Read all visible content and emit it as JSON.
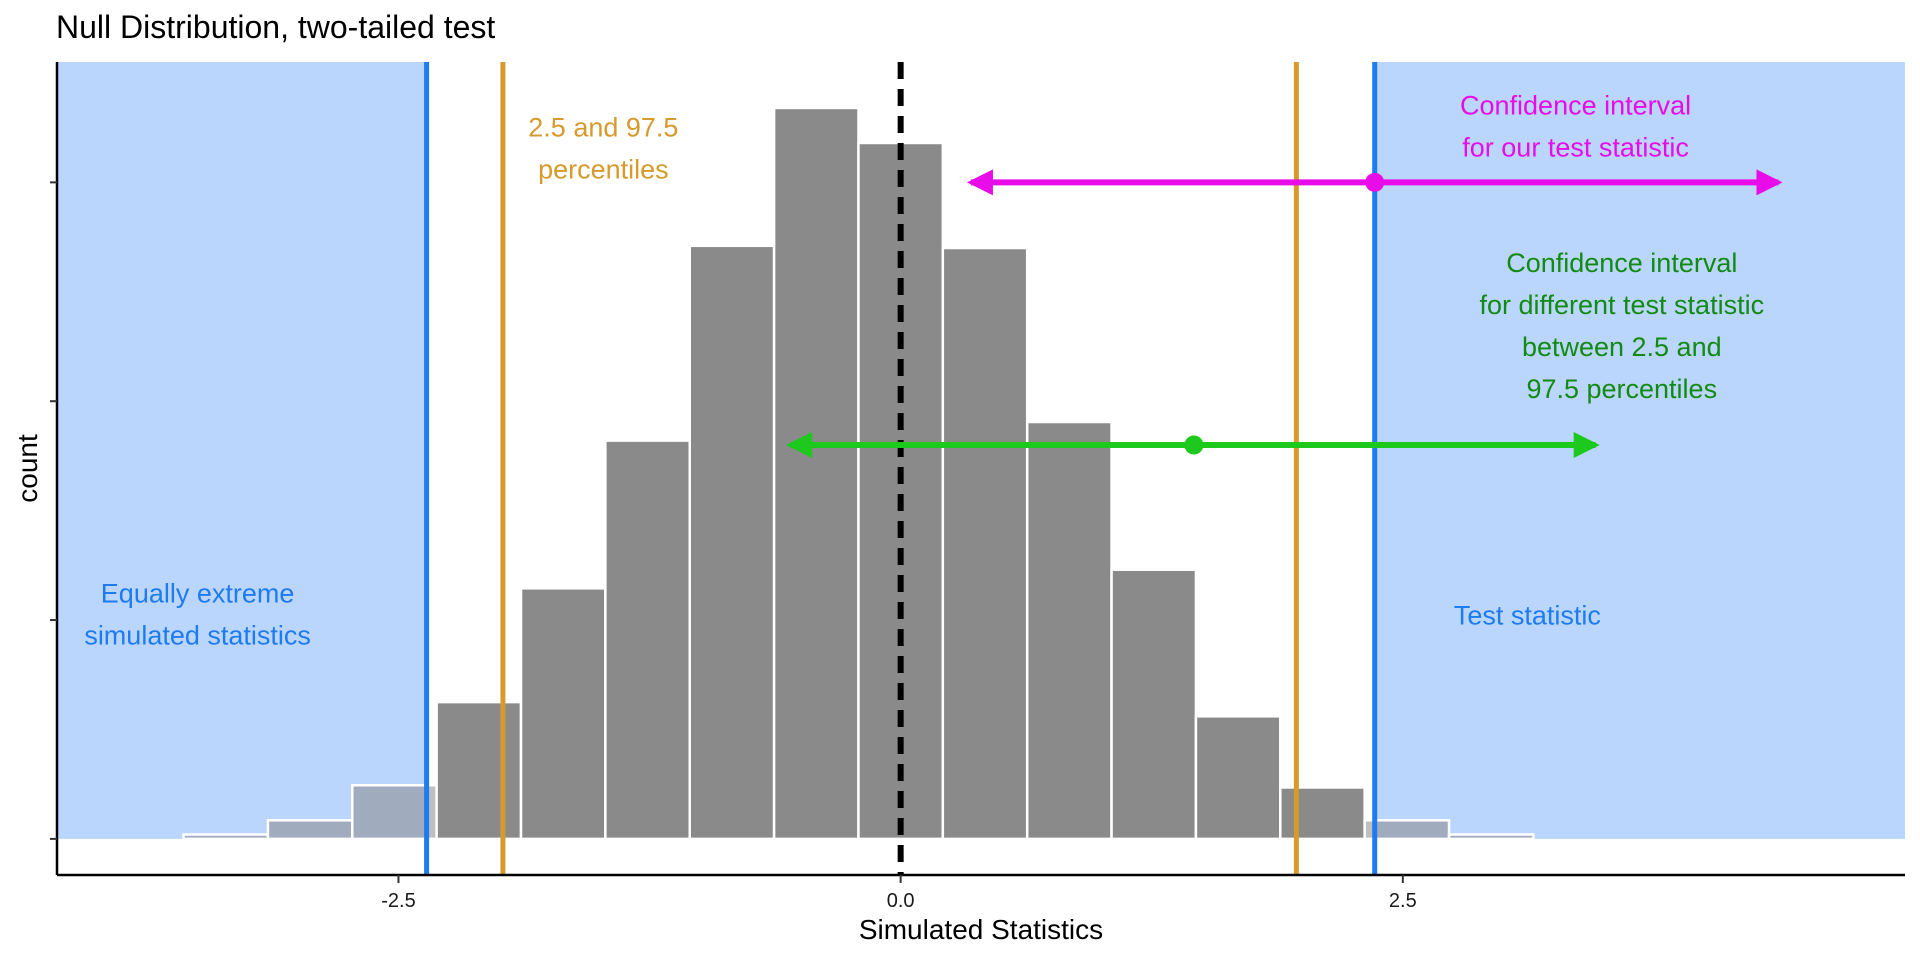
{
  "chart_data": {
    "type": "bar",
    "title": "Null Distribution, two-tailed test",
    "xlabel": "Simulated Statistics",
    "ylabel": "count",
    "xlim": [
      -4.2,
      5.0
    ],
    "ylim": [
      -0.165,
      3.55
    ],
    "x_ticks": [
      {
        "value": -2.5,
        "label": "-2.5"
      },
      {
        "value": 0.0,
        "label": "0.0"
      },
      {
        "value": 2.5,
        "label": "2.5"
      }
    ],
    "y_ticks": [
      0,
      1,
      2,
      3
    ],
    "y_tick_labels_shown": false,
    "bin_width": 0.42,
    "bins": [
      {
        "center": -3.36,
        "count": 0.02
      },
      {
        "center": -2.94,
        "count": 0.085
      },
      {
        "center": -2.52,
        "count": 0.245
      },
      {
        "center": -2.1,
        "count": 0.625
      },
      {
        "center": -1.68,
        "count": 1.145
      },
      {
        "center": -1.26,
        "count": 1.82
      },
      {
        "center": -0.84,
        "count": 2.71
      },
      {
        "center": -0.42,
        "count": 3.34
      },
      {
        "center": 0.0,
        "count": 3.18
      },
      {
        "center": 0.42,
        "count": 2.7
      },
      {
        "center": 0.84,
        "count": 1.905
      },
      {
        "center": 1.26,
        "count": 1.23
      },
      {
        "center": 1.68,
        "count": 0.56
      },
      {
        "center": 2.1,
        "count": 0.235
      },
      {
        "center": 2.52,
        "count": 0.085
      },
      {
        "center": 2.94,
        "count": 0.02
      }
    ],
    "shaded_regions": [
      {
        "from": -4.2,
        "to": -2.36
      },
      {
        "from": 2.36,
        "to": 5.0
      }
    ],
    "reference_lines": [
      {
        "name": "null-center",
        "x": 0.0,
        "style": "dashed",
        "color": "#000000"
      },
      {
        "name": "percentile-2.5",
        "x": -1.98,
        "style": "solid",
        "color": "#D69A2D"
      },
      {
        "name": "percentile-97.5",
        "x": 1.97,
        "style": "solid",
        "color": "#D69A2D"
      },
      {
        "name": "equally-extreme",
        "x": -2.36,
        "style": "solid",
        "color": "#1E7BF0"
      },
      {
        "name": "test-statistic",
        "x": 2.36,
        "style": "solid",
        "color": "#1E7BF0"
      }
    ],
    "interval_arrows": [
      {
        "name": "ci-our-test-statistic",
        "center": 2.36,
        "from": 0.33,
        "to": 4.39,
        "y": 3.0,
        "color": "#E80CE8"
      },
      {
        "name": "ci-different-test-statistic",
        "center": 1.46,
        "from": -0.57,
        "to": 3.48,
        "y": 1.8,
        "color": "#1CC91C"
      }
    ],
    "annotations": [
      {
        "name": "percentiles-label",
        "lines": [
          "2.5 and 97.5",
          "percentiles"
        ],
        "color": "#D69A2D"
      },
      {
        "name": "equally-extreme-label",
        "lines": [
          "Equally extreme",
          "simulated statistics"
        ],
        "color": "#1E7BF0"
      },
      {
        "name": "test-statistic-label",
        "lines": [
          "Test statistic"
        ],
        "color": "#1E7BF0"
      },
      {
        "name": "ci-our-label",
        "lines": [
          "Confidence interval",
          "for our test statistic"
        ],
        "color": "#E80CE8"
      },
      {
        "name": "ci-different-label",
        "lines": [
          "Confidence interval",
          "for different test statistic",
          "between 2.5 and",
          "97.5 percentiles"
        ],
        "color": "#138A13"
      }
    ],
    "colors": {
      "bar_fill": "#8A8A8A",
      "bar_stroke": "#FFFFFF",
      "bar_in_shade": "#6B88B4",
      "shade": "#BAD6FC"
    }
  }
}
